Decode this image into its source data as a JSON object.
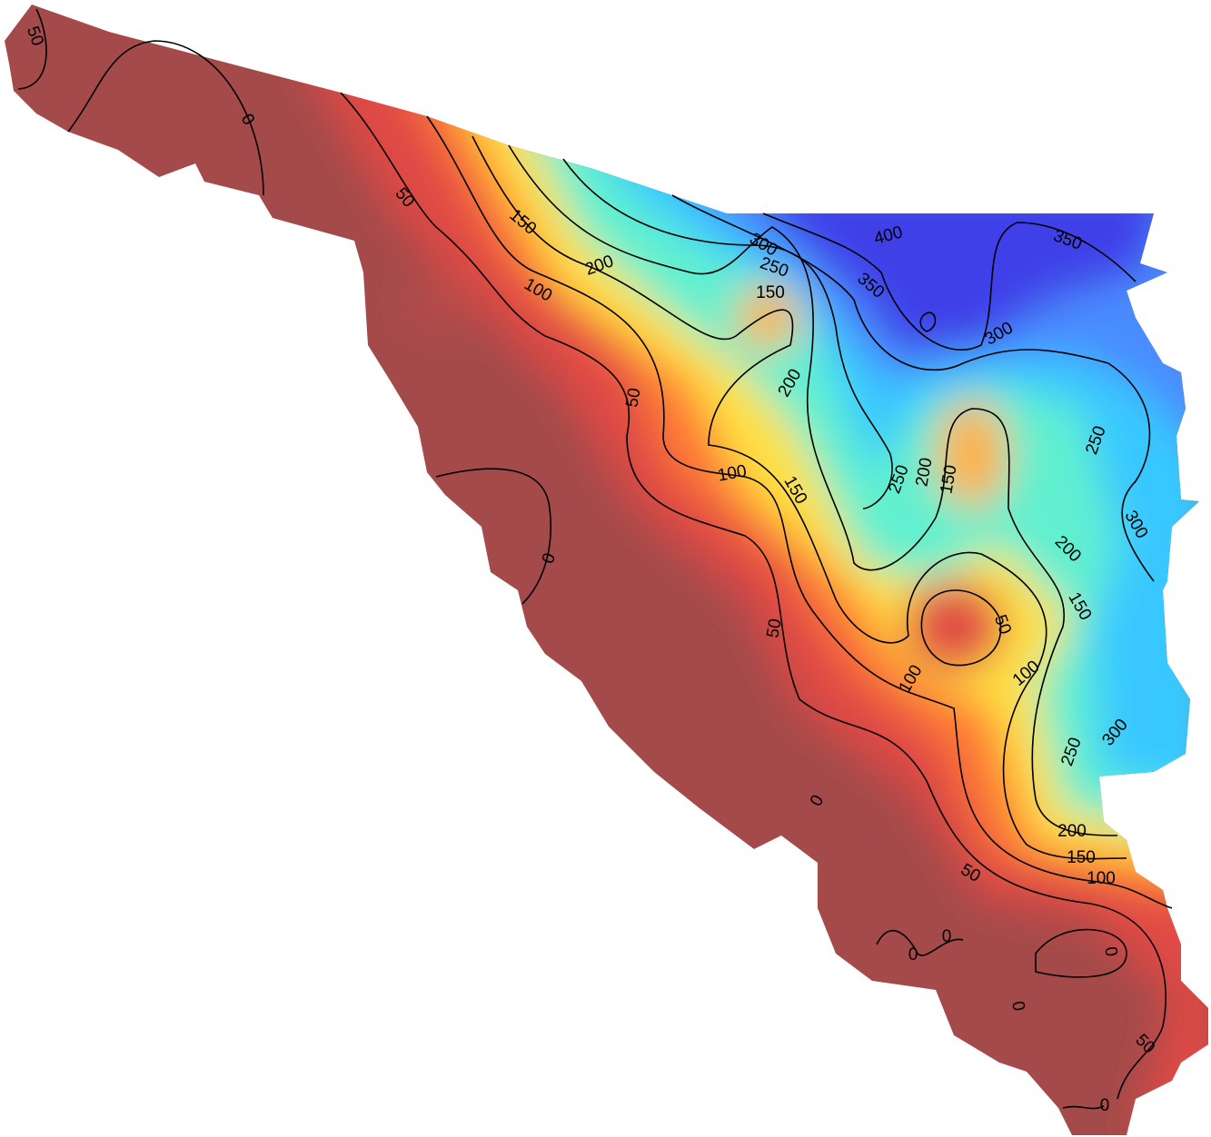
{
  "contour_labels": [
    50,
    0,
    50,
    150,
    200,
    100,
    300,
    250,
    400,
    350,
    150,
    350,
    300,
    200,
    50,
    100,
    150,
    250,
    200,
    150,
    250,
    300,
    0,
    200,
    150,
    50,
    50,
    100,
    100,
    300,
    250,
    0,
    200,
    150,
    50,
    100,
    0,
    0,
    0,
    0,
    50,
    0
  ]
}
